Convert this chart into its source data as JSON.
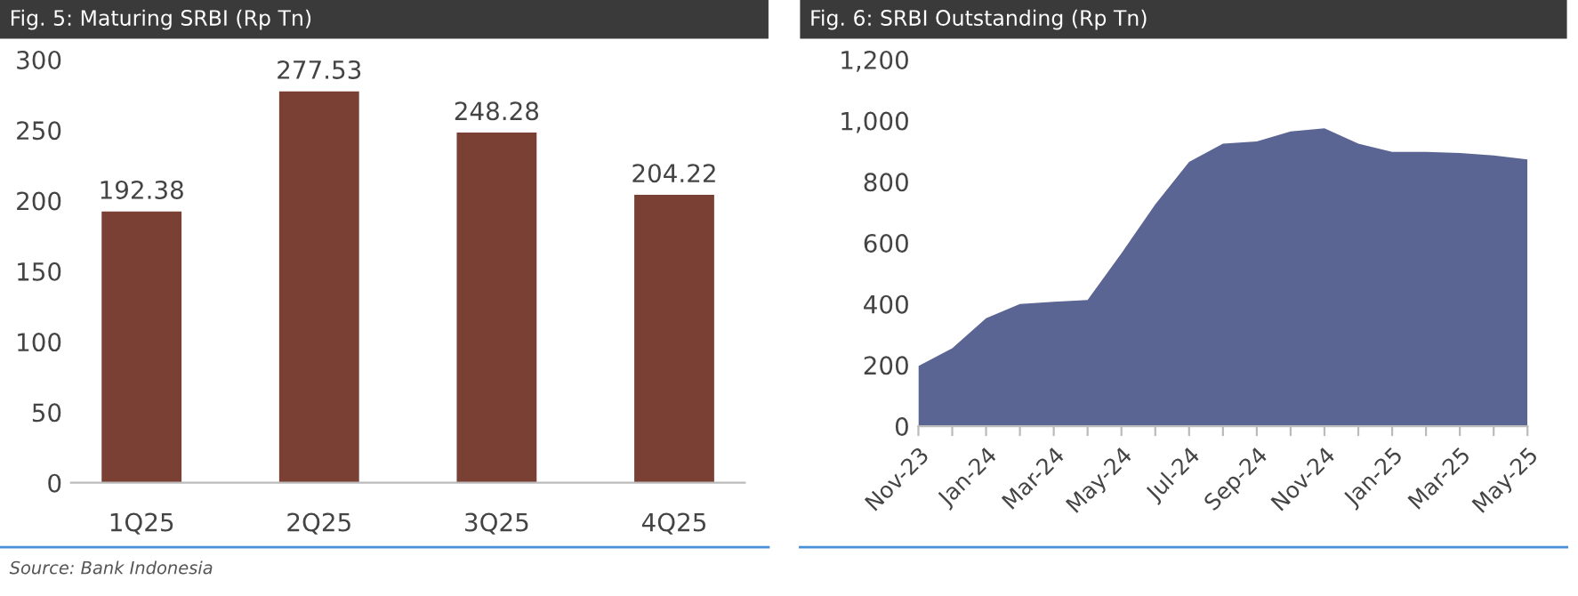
{
  "chart_data": [
    {
      "type": "bar",
      "title": "Fig. 5: Maturing SRBI (Rp Tn)",
      "categories": [
        "1Q25",
        "2Q25",
        "3Q25",
        "4Q25"
      ],
      "values": [
        192.38,
        277.53,
        248.28,
        204.22
      ],
      "color": "#7b4034",
      "data_labels": true,
      "ylim": [
        0,
        300
      ],
      "yticks": [
        0,
        50,
        100,
        150,
        200,
        250,
        300
      ],
      "grid": false,
      "annotations": [
        "Source: Bank Indonesia"
      ]
    },
    {
      "type": "area",
      "title": "Fig. 6: SRBI Outstanding (Rp Tn)",
      "categories": [
        "Nov-23",
        null,
        "Jan-24",
        null,
        "Mar-24",
        null,
        "May-24",
        null,
        "Jul-24",
        null,
        "Sep-24",
        null,
        "Nov-24",
        null,
        "Jan-25",
        null,
        "Mar-25",
        null,
        "May-25"
      ],
      "values": [
        197,
        255,
        353,
        400,
        407,
        413,
        566,
        726,
        865,
        925,
        932,
        965,
        975,
        925,
        898,
        898,
        894,
        886,
        873
      ],
      "color": "#5a6593",
      "ylim": [
        0,
        1200
      ],
      "yticks": [
        0,
        {
          "value": 200,
          "label": "200"
        },
        {
          "value": 400,
          "label": "400"
        },
        {
          "value": 600,
          "label": "600"
        },
        {
          "value": 800,
          "label": "800"
        },
        {
          "value": 1000,
          "label": "1,000"
        },
        {
          "value": 1200,
          "label": "1,200"
        }
      ],
      "grid": false
    }
  ]
}
